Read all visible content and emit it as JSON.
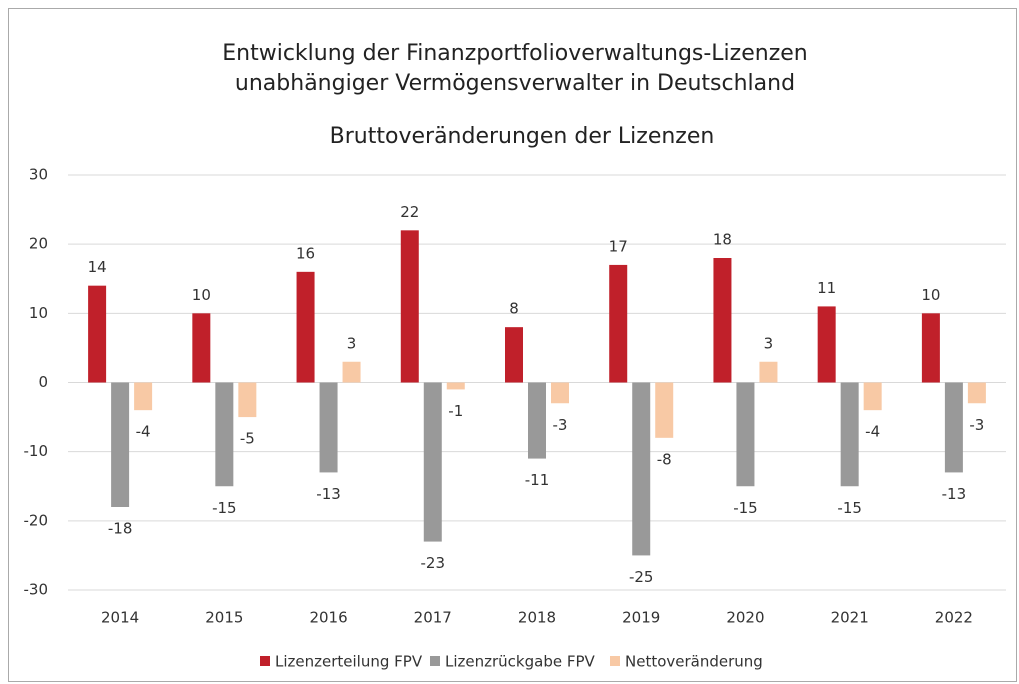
{
  "chart_data": {
    "type": "bar",
    "title": [
      "Entwicklung der Finanzportfolioverwaltungs-Lizenzen",
      "unabhängiger Vermögensverwalter in Deutschland"
    ],
    "subtitle": "Bruttoveränderungen der Lizenzen",
    "categories": [
      "2014",
      "2015",
      "2016",
      "2017",
      "2018",
      "2019",
      "2020",
      "2021",
      "2022"
    ],
    "series": [
      {
        "name": "Lizenzerteilung FPV",
        "color": "#c0202a",
        "values": [
          14,
          10,
          16,
          22,
          8,
          17,
          18,
          11,
          10
        ]
      },
      {
        "name": "Lizenzrückgabe FPV",
        "color": "#999999",
        "values": [
          -18,
          -15,
          -13,
          -23,
          -11,
          -25,
          -15,
          -15,
          -13
        ]
      },
      {
        "name": "Nettoveränderung",
        "color": "#f8c9a5",
        "values": [
          -4,
          -5,
          3,
          -1,
          -3,
          -8,
          3,
          -4,
          -3
        ]
      }
    ],
    "ylim": [
      -30,
      30
    ],
    "yticks": [
      -30,
      -20,
      -10,
      0,
      10,
      20,
      30
    ],
    "grid": true,
    "legend": "bottom"
  }
}
